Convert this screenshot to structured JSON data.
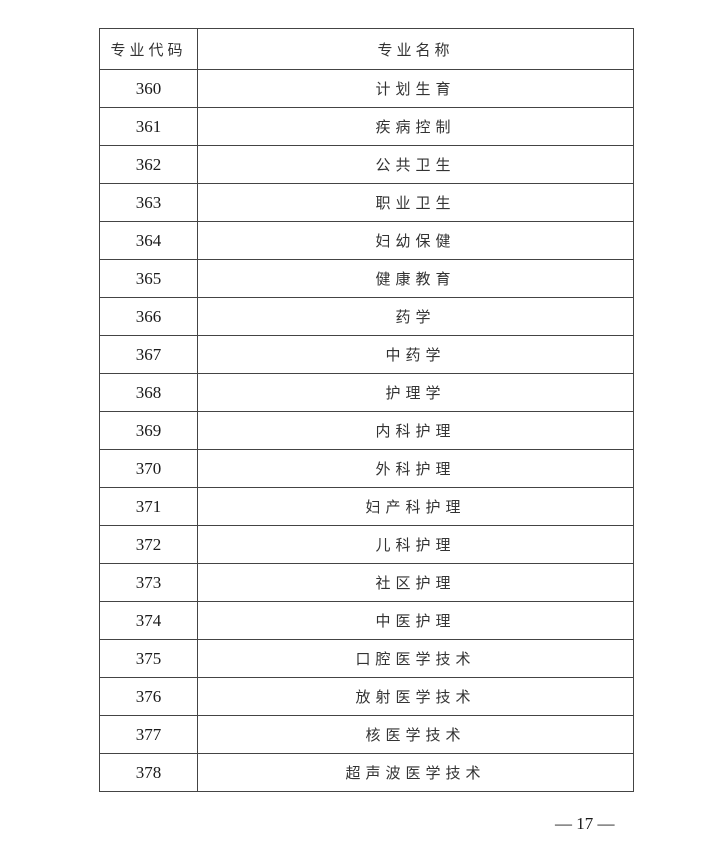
{
  "table": {
    "headers": {
      "code": "专业代码",
      "name": "专业名称"
    },
    "rows": [
      {
        "code": "360",
        "name": "计划生育"
      },
      {
        "code": "361",
        "name": "疾病控制"
      },
      {
        "code": "362",
        "name": "公共卫生"
      },
      {
        "code": "363",
        "name": "职业卫生"
      },
      {
        "code": "364",
        "name": "妇幼保健"
      },
      {
        "code": "365",
        "name": "健康教育"
      },
      {
        "code": "366",
        "name": "药学"
      },
      {
        "code": "367",
        "name": "中药学"
      },
      {
        "code": "368",
        "name": "护理学"
      },
      {
        "code": "369",
        "name": "内科护理"
      },
      {
        "code": "370",
        "name": "外科护理"
      },
      {
        "code": "371",
        "name": "妇产科护理"
      },
      {
        "code": "372",
        "name": "儿科护理"
      },
      {
        "code": "373",
        "name": "社区护理"
      },
      {
        "code": "374",
        "name": "中医护理"
      },
      {
        "code": "375",
        "name": "口腔医学技术"
      },
      {
        "code": "376",
        "name": "放射医学技术"
      },
      {
        "code": "377",
        "name": "核医学技术"
      },
      {
        "code": "378",
        "name": "超声波医学技术"
      }
    ]
  },
  "page_number": "— 17 —"
}
